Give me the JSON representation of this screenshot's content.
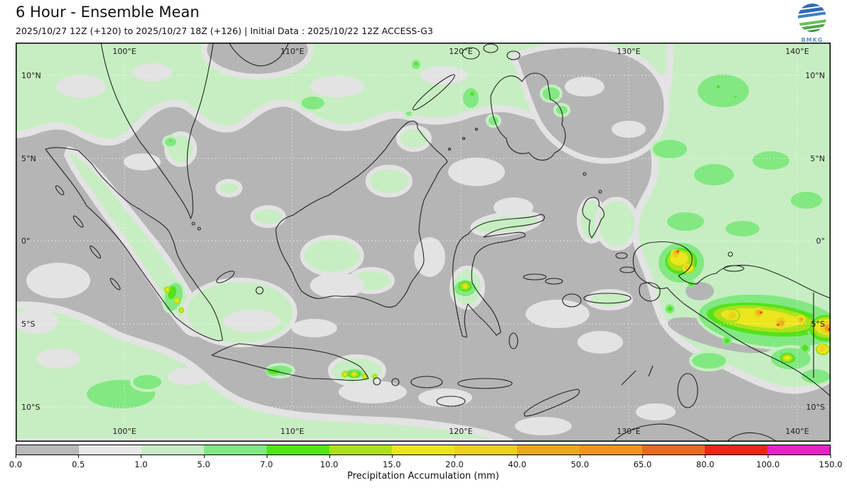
{
  "header": {
    "title": "6 Hour - Ensemble Mean",
    "subtitle": "2025/10/27 12Z (+120) to 2025/10/27 18Z (+126) | Initial Data : 2025/10/22 12Z ACCESS-G3",
    "logo_text": "BMKG"
  },
  "map": {
    "lon_labels": [
      "100°E",
      "110°E",
      "120°E",
      "130°E",
      "140°E"
    ],
    "lat_labels": [
      "10°N",
      "5°N",
      "0°",
      "5°S",
      "10°S"
    ]
  },
  "colorbar": {
    "label": "Precipitation Accumulation (mm)",
    "ticks": [
      "0.0",
      "0.5",
      "1.0",
      "5.0",
      "7.0",
      "10.0",
      "15.0",
      "20.0",
      "40.0",
      "50.0",
      "65.0",
      "80.0",
      "100.0",
      "150.0"
    ],
    "segment_colors": [
      "#b9b9b9",
      "#e8e8e8",
      "#c7eec2",
      "#82e882",
      "#52e31a",
      "#abe01c",
      "#ebe61e",
      "#edd11c",
      "#e9a91d",
      "#ee9420",
      "#e86a20",
      "#ee2518",
      "#e424c3"
    ]
  }
}
